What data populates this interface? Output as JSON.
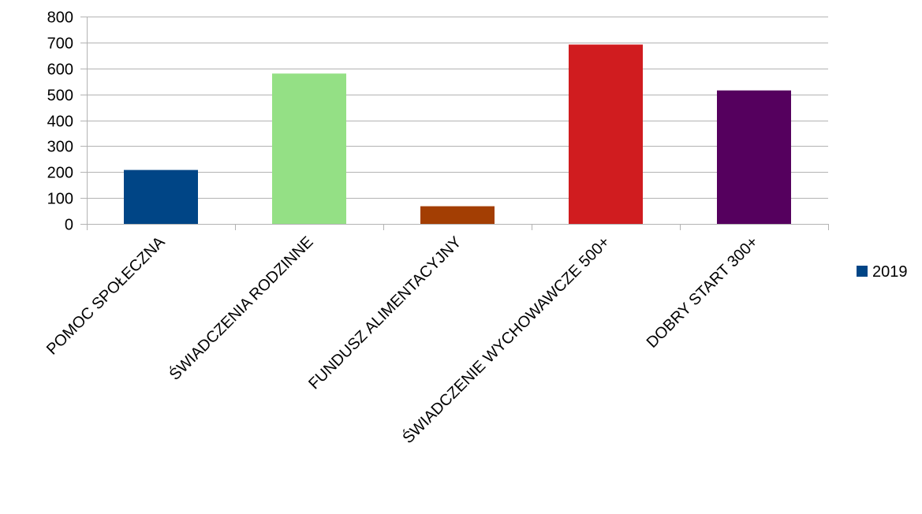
{
  "chart_data": {
    "type": "bar",
    "categories": [
      "POMOC SPOŁECZNA",
      "ŚWIADCZENIA RODZINNE",
      "FUNDUSZ ALIMENTACYJNY",
      "ŚWIADCZENIE WYCHOWAWCZE 500+",
      "DOBRY START 300+"
    ],
    "series": [
      {
        "name": "2019",
        "values": [
          208,
          580,
          68,
          692,
          515
        ]
      }
    ],
    "bar_colors": [
      "#004586",
      "#94e085",
      "#a33e03",
      "#d01c1f",
      "#55005e"
    ],
    "legend_color": "#004586",
    "ylim": [
      0,
      800
    ],
    "yticks": [
      "0",
      "100",
      "200",
      "300",
      "400",
      "500",
      "600",
      "700",
      "800"
    ],
    "grid": true,
    "legend_position": "right",
    "title": "",
    "xlabel": "",
    "ylabel": ""
  }
}
